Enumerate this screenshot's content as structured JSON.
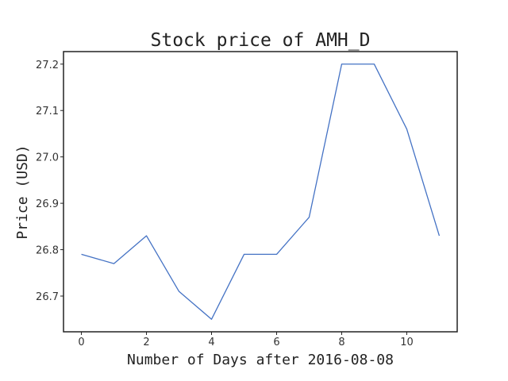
{
  "chart_data": {
    "type": "line",
    "title": "Stock price of AMH_D",
    "xlabel": "Number of Days after 2016-08-08",
    "ylabel": "Price (USD)",
    "x": [
      0,
      1,
      2,
      3,
      4,
      5,
      6,
      7,
      8,
      9,
      10,
      11
    ],
    "series": [
      {
        "values": [
          26.79,
          26.77,
          26.83,
          26.71,
          26.65,
          26.79,
          26.79,
          26.87,
          27.2,
          27.2,
          27.06,
          26.83
        ],
        "color": "#4472c4"
      }
    ],
    "xlim": [
      -0.55,
      11.55
    ],
    "ylim": [
      26.623,
      27.227
    ],
    "xticks": [
      0,
      2,
      4,
      6,
      8,
      10
    ],
    "xtick_labels": [
      "0",
      "2",
      "4",
      "6",
      "8",
      "10"
    ],
    "yticks": [
      26.7,
      26.8,
      26.9,
      27.0,
      27.1,
      27.2
    ],
    "ytick_labels": [
      "26.7",
      "26.8",
      "26.9",
      "27.0",
      "27.1",
      "27.2"
    ],
    "grid": false,
    "legend": false
  }
}
